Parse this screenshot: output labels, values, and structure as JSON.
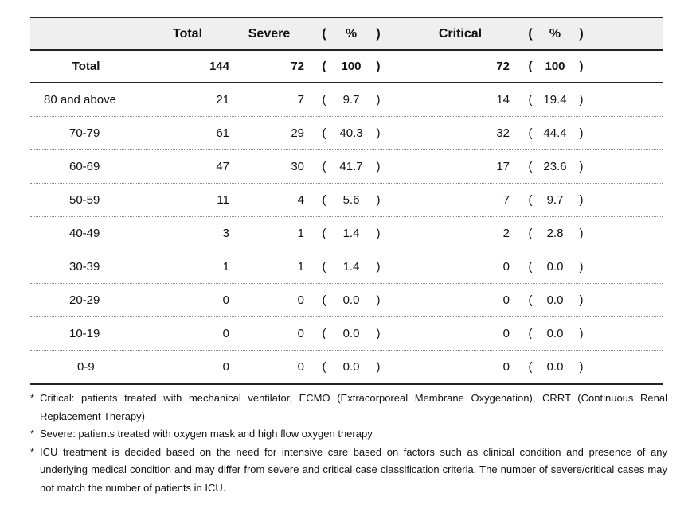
{
  "header": {
    "total": "Total",
    "severe": "Severe",
    "critical": "Critical",
    "open": "(",
    "pct": "%",
    "close": ")"
  },
  "total_row": {
    "label": "Total",
    "total": "144",
    "severe": "72",
    "severe_pct": "100",
    "critical": "72",
    "critical_pct": "100"
  },
  "rows": [
    {
      "label": "80 and above",
      "total": "21",
      "severe": "7",
      "severe_pct": "9.7",
      "critical": "14",
      "critical_pct": "19.4"
    },
    {
      "label": "70-79",
      "total": "61",
      "severe": "29",
      "severe_pct": "40.3",
      "critical": "32",
      "critical_pct": "44.4"
    },
    {
      "label": "60-69",
      "total": "47",
      "severe": "30",
      "severe_pct": "41.7",
      "critical": "17",
      "critical_pct": "23.6"
    },
    {
      "label": "50-59",
      "total": "11",
      "severe": "4",
      "severe_pct": "5.6",
      "critical": "7",
      "critical_pct": "9.7"
    },
    {
      "label": "40-49",
      "total": "3",
      "severe": "1",
      "severe_pct": "1.4",
      "critical": "2",
      "critical_pct": "2.8"
    },
    {
      "label": "30-39",
      "total": "1",
      "severe": "1",
      "severe_pct": "1.4",
      "critical": "0",
      "critical_pct": "0.0"
    },
    {
      "label": "20-29",
      "total": "0",
      "severe": "0",
      "severe_pct": "0.0",
      "critical": "0",
      "critical_pct": "0.0"
    },
    {
      "label": "10-19",
      "total": "0",
      "severe": "0",
      "severe_pct": "0.0",
      "critical": "0",
      "critical_pct": "0.0"
    },
    {
      "label": "0-9",
      "total": "0",
      "severe": "0",
      "severe_pct": "0.0",
      "critical": "0",
      "critical_pct": "0.0"
    }
  ],
  "notes": [
    {
      "bullet": "*",
      "text": "Critical: patients treated with mechanical ventilator, ECMO (Extracorporeal Membrane Oxygenation), CRRT (Continuous Renal Replacement Therapy)"
    },
    {
      "bullet": "*",
      "text": "Severe: patients treated with oxygen mask and high flow oxygen therapy"
    },
    {
      "bullet": "*",
      "text": "ICU treatment is decided based on the need for intensive care based on factors such as clinical condition and presence of any underlying medical condition and may differ from severe and critical case classification criteria. The number of severe/critical cases may not match the number of patients in ICU."
    }
  ]
}
